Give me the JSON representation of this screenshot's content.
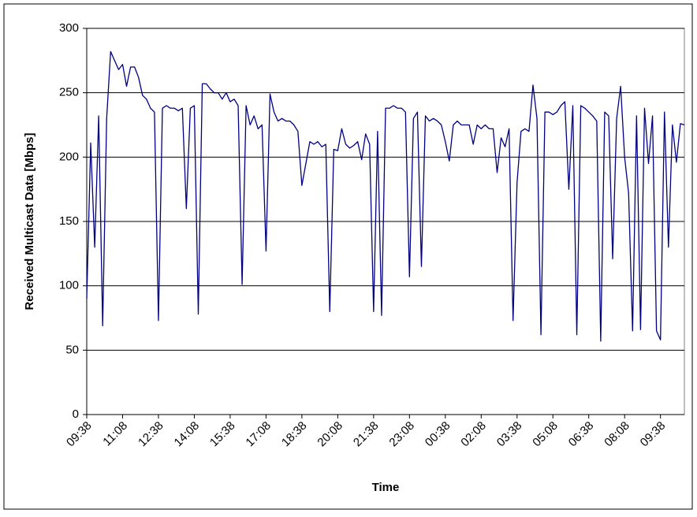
{
  "chart_data": {
    "type": "line",
    "xlabel": "Time",
    "ylabel": "Received Multicast Data [Mbps]",
    "categories": [
      "09:38",
      null,
      null,
      null,
      null,
      null,
      null,
      null,
      null,
      "11:08",
      null,
      null,
      null,
      null,
      null,
      null,
      null,
      null,
      "12:38",
      null,
      null,
      null,
      null,
      null,
      null,
      null,
      null,
      "14:08",
      null,
      null,
      null,
      null,
      null,
      null,
      null,
      null,
      "15:38",
      null,
      null,
      null,
      null,
      null,
      null,
      null,
      null,
      "17:08",
      null,
      null,
      null,
      null,
      null,
      null,
      null,
      null,
      "18:38",
      null,
      null,
      null,
      null,
      null,
      null,
      null,
      null,
      "20:08",
      null,
      null,
      null,
      null,
      null,
      null,
      null,
      null,
      "21:38",
      null,
      null,
      null,
      null,
      null,
      null,
      null,
      null,
      "23:08",
      null,
      null,
      null,
      null,
      null,
      null,
      null,
      null,
      "00:38",
      null,
      null,
      null,
      null,
      null,
      null,
      null,
      null,
      "02:08",
      null,
      null,
      null,
      null,
      null,
      null,
      null,
      null,
      "03:38",
      null,
      null,
      null,
      null,
      null,
      null,
      null,
      null,
      "05:08",
      null,
      null,
      null,
      null,
      null,
      null,
      null,
      null,
      "06:38",
      null,
      null,
      null,
      null,
      null,
      null,
      null,
      null,
      "08:08",
      null,
      null,
      null,
      null,
      null,
      null,
      null,
      null,
      "09:38",
      null,
      null,
      null,
      null,
      null,
      null
    ],
    "values": [
      90,
      211,
      130,
      232,
      69,
      230,
      282,
      275,
      268,
      272,
      255,
      270,
      270,
      262,
      248,
      245,
      238,
      235,
      73,
      238,
      240,
      238,
      238,
      236,
      238,
      160,
      238,
      240,
      78,
      257,
      257,
      253,
      250,
      250,
      245,
      250,
      243,
      245,
      240,
      101,
      240,
      225,
      232,
      222,
      225,
      127,
      249,
      235,
      228,
      230,
      228,
      228,
      225,
      220,
      178,
      195,
      212,
      210,
      212,
      208,
      210,
      80,
      206,
      205,
      222,
      210,
      207,
      209,
      212,
      198,
      218,
      210,
      80,
      220,
      77,
      238,
      238,
      240,
      238,
      238,
      235,
      107,
      230,
      235,
      115,
      232,
      228,
      230,
      228,
      225,
      212,
      197,
      225,
      228,
      225,
      225,
      225,
      210,
      225,
      222,
      225,
      222,
      222,
      188,
      215,
      208,
      222,
      73,
      180,
      220,
      222,
      220,
      256,
      230,
      62,
      235,
      235,
      233,
      235,
      240,
      243,
      175,
      240,
      62,
      240,
      238,
      235,
      232,
      228,
      57,
      235,
      232,
      121,
      230,
      255,
      200,
      172,
      65,
      232,
      66,
      238,
      195,
      232,
      65,
      58,
      235,
      130,
      225,
      196,
      226,
      225
    ],
    "color": "#000080",
    "ylim": [
      0,
      300
    ],
    "yticks": [
      0,
      50,
      100,
      150,
      200,
      250,
      300
    ],
    "grid": true
  }
}
